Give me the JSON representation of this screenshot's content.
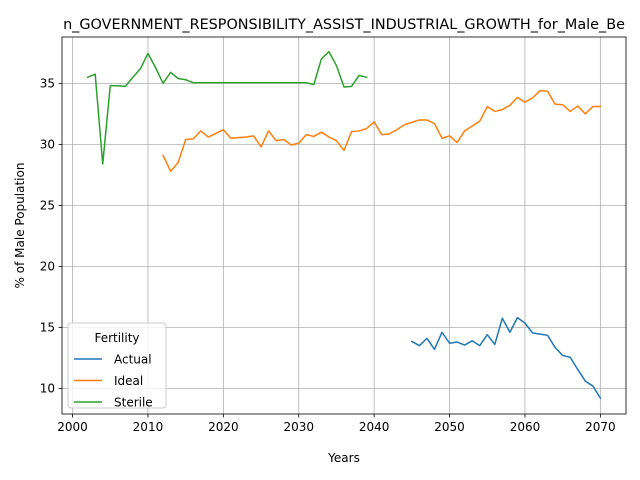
{
  "chart_data": {
    "type": "line",
    "title": "n_GOVERNMENT_RESPONSIBILITY_ASSIST_INDUSTRIAL_GROWTH_for_Male_Be",
    "xlabel": "Years",
    "ylabel": "% of Male Population",
    "xlim": [
      1998.6,
      2073.4
    ],
    "ylim": [
      7.9,
      38.8
    ],
    "xticks": [
      2000,
      2010,
      2020,
      2030,
      2040,
      2050,
      2060,
      2070
    ],
    "yticks": [
      10,
      15,
      20,
      25,
      30,
      35
    ],
    "grid": true,
    "legend": {
      "title": "Fertility",
      "placement": "lower-left"
    },
    "series": [
      {
        "name": "Actual",
        "color": "#1f77b4",
        "x": [
          2045,
          2046,
          2047,
          2048,
          2049,
          2050,
          2051,
          2052,
          2053,
          2054,
          2055,
          2056,
          2057,
          2058,
          2059,
          2060,
          2061,
          2062,
          2063,
          2064,
          2065,
          2066,
          2067,
          2068,
          2069,
          2070
        ],
        "y": [
          13.85,
          13.5,
          14.1,
          13.2,
          14.6,
          13.7,
          13.8,
          13.55,
          13.9,
          13.5,
          14.4,
          13.6,
          15.75,
          14.6,
          15.8,
          15.35,
          14.55,
          14.45,
          14.35,
          13.35,
          12.7,
          12.55,
          11.55,
          10.6,
          10.2,
          9.2
        ]
      },
      {
        "name": "Ideal",
        "color": "#ff7f0e",
        "x": [
          2012,
          2013,
          2014,
          2015,
          2016,
          2017,
          2018,
          2019,
          2020,
          2021,
          2022,
          2023,
          2024,
          2025,
          2026,
          2027,
          2028,
          2029,
          2030,
          2031,
          2032,
          2033,
          2034,
          2035,
          2036,
          2037,
          2038,
          2039,
          2040,
          2041,
          2042,
          2043,
          2044,
          2045,
          2046,
          2047,
          2048,
          2049,
          2050,
          2051,
          2052,
          2053,
          2054,
          2055,
          2056,
          2057,
          2058,
          2059,
          2060,
          2061,
          2062,
          2063,
          2064,
          2065,
          2066,
          2067,
          2068,
          2069,
          2070
        ],
        "y": [
          29.1,
          27.8,
          28.5,
          30.4,
          30.45,
          31.1,
          30.6,
          30.9,
          31.2,
          30.5,
          30.55,
          30.6,
          30.7,
          29.8,
          31.1,
          30.3,
          30.4,
          29.95,
          30.1,
          30.8,
          30.65,
          31.0,
          30.6,
          30.3,
          29.5,
          31.05,
          31.1,
          31.3,
          31.85,
          30.8,
          30.85,
          31.2,
          31.6,
          31.8,
          32.0,
          32.0,
          31.7,
          30.5,
          30.7,
          30.15,
          31.1,
          31.5,
          31.9,
          33.1,
          32.7,
          32.85,
          33.2,
          33.85,
          33.45,
          33.8,
          34.4,
          34.35,
          33.3,
          33.25,
          32.7,
          33.15,
          32.5,
          33.1,
          33.1
        ]
      },
      {
        "name": "Sterile",
        "color": "#2ca02c",
        "x": [
          2002,
          2003,
          2004,
          2005,
          2006,
          2007,
          2008,
          2009,
          2010,
          2011,
          2012,
          2013,
          2014,
          2015,
          2016,
          2017,
          2018,
          2019,
          2020,
          2021,
          2022,
          2023,
          2024,
          2025,
          2026,
          2027,
          2028,
          2029,
          2030,
          2031,
          2032,
          2033,
          2034,
          2035,
          2036,
          2037,
          2038,
          2039
        ],
        "y": [
          35.5,
          35.75,
          28.4,
          34.8,
          34.8,
          34.75,
          35.5,
          36.2,
          37.45,
          36.3,
          35.0,
          35.9,
          35.4,
          35.3,
          35.05,
          35.05,
          35.05,
          35.05,
          35.05,
          35.05,
          35.05,
          35.05,
          35.05,
          35.05,
          35.05,
          35.05,
          35.05,
          35.05,
          35.05,
          35.05,
          34.9,
          37.0,
          37.6,
          36.45,
          34.7,
          34.75,
          35.65,
          35.5
        ]
      }
    ]
  }
}
